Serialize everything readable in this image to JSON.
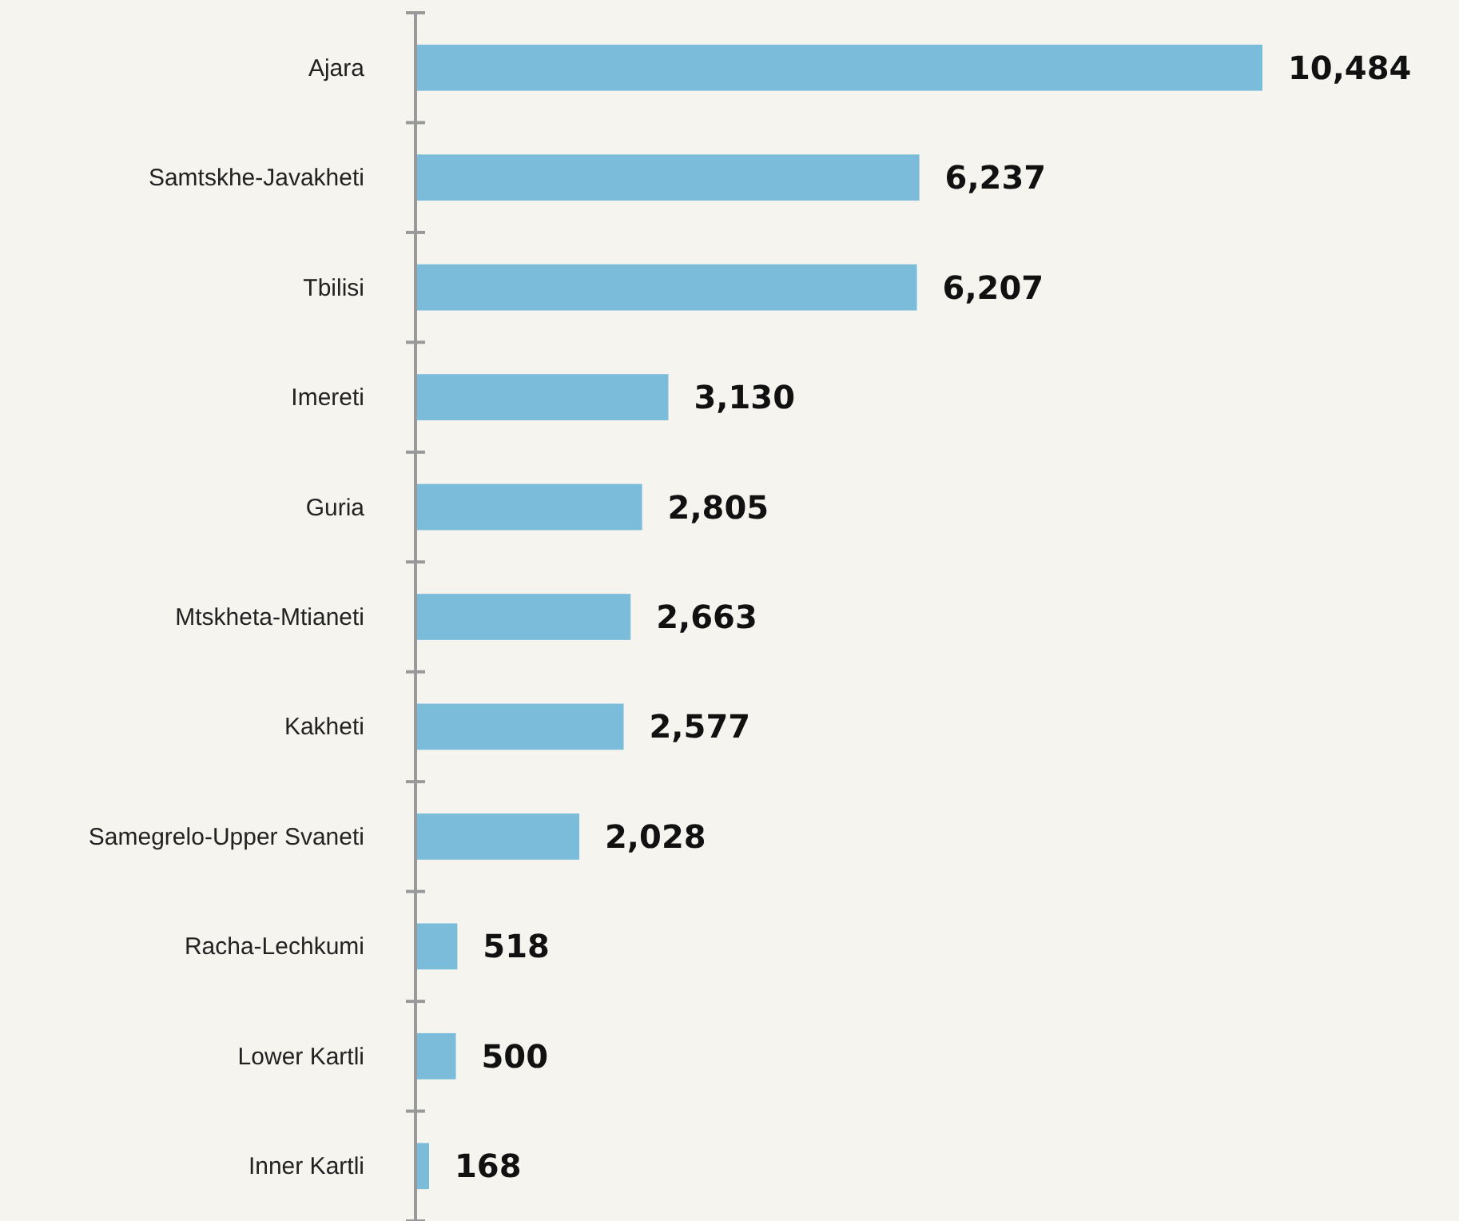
{
  "chart_data": {
    "type": "bar",
    "orientation": "horizontal",
    "categories": [
      "Ajara",
      "Samtskhe-Javakheti",
      "Tbilisi",
      "Imereti",
      "Guria",
      "Mtskheta-Mtianeti",
      "Kakheti",
      "Samegrelo-Upper Svaneti",
      "Racha-Lechkumi",
      "Lower Kartli",
      "Inner Kartli"
    ],
    "values": [
      10484,
      6237,
      6207,
      3130,
      2805,
      2663,
      2577,
      2028,
      518,
      500,
      168
    ],
    "value_labels": [
      "10,484",
      "6,237",
      "6,207",
      "3,130",
      "2,805",
      "2,663",
      "2,577",
      "2,028",
      "518",
      "500",
      "168"
    ],
    "color": "#7bbcda"
  }
}
